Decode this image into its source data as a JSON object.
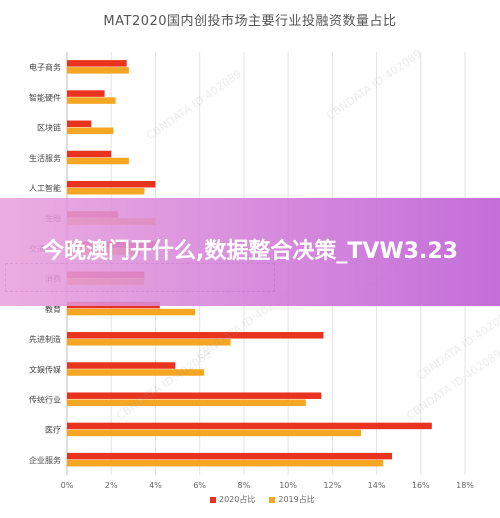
{
  "chart_data": {
    "type": "bar",
    "orientation": "horizontal",
    "title": "MAT2020国内创投市场主要行业投融资数量占比",
    "categories": [
      "电子商务",
      "智能硬件",
      "区块链",
      "生活服务",
      "人工智能",
      "金融",
      "交通物流",
      "消费",
      "教育",
      "先进制造",
      "文娱传媒",
      "传统行业",
      "医疗",
      "企业服务"
    ],
    "series": [
      {
        "name": "2020占比",
        "color": "#e8331f",
        "values": [
          2.7,
          1.7,
          1.1,
          2.0,
          4.0,
          2.3,
          4.0,
          3.5,
          4.2,
          11.6,
          4.9,
          11.5,
          16.5,
          14.7
        ]
      },
      {
        "name": "2019占比",
        "color": "#f5a623",
        "values": [
          2.8,
          2.2,
          2.1,
          2.8,
          3.5,
          4.0,
          3.3,
          3.5,
          5.8,
          7.4,
          6.2,
          10.8,
          13.3,
          14.3
        ]
      }
    ],
    "xlim": [
      0,
      18
    ],
    "xticks": [
      "0%",
      "2%",
      "4%",
      "6%",
      "8%",
      "10%",
      "12%",
      "14%",
      "16%",
      "18%"
    ],
    "grid": true,
    "legend_position": "bottom"
  },
  "overlay": {
    "banner_text": "今晚澳门开什么,数据整合决策_TVW3.23"
  },
  "watermark": "CBNDATA ID:402089"
}
